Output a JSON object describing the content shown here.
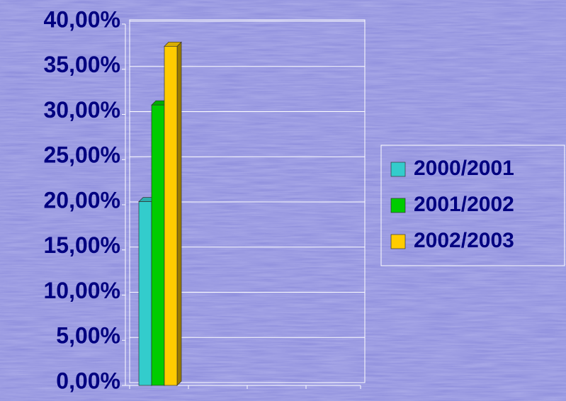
{
  "chart_data": {
    "type": "bar3d",
    "categories": [
      null,
      null,
      null,
      null
    ],
    "series": [
      {
        "name": "2000/2001",
        "color": "#33cccc",
        "values": [
          20.5,
          null,
          null,
          null
        ]
      },
      {
        "name": "2001/2002",
        "color": "#00cc00",
        "values": [
          31.2,
          null,
          null,
          null
        ]
      },
      {
        "name": "2002/2003",
        "color": "#ffcc00",
        "values": [
          37.7,
          null,
          null,
          null
        ]
      }
    ],
    "ylim": [
      0,
      40
    ],
    "yticks": [
      {
        "value": 0,
        "label": "0,00%"
      },
      {
        "value": 5,
        "label": "5,00%"
      },
      {
        "value": 10,
        "label": "10,00%"
      },
      {
        "value": 15,
        "label": "15,00%"
      },
      {
        "value": 20,
        "label": "20,00%"
      },
      {
        "value": 25,
        "label": "25,00%"
      },
      {
        "value": 30,
        "label": "30,00%"
      },
      {
        "value": 35,
        "label": "35,00%"
      },
      {
        "value": 40,
        "label": "40,00%"
      }
    ],
    "grid": true,
    "legend": "right"
  }
}
